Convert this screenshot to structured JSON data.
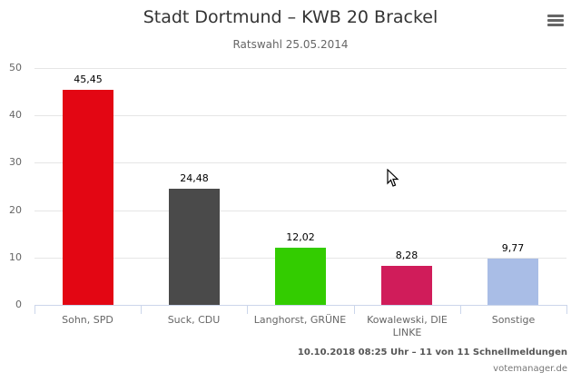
{
  "header": {
    "title": "Stadt Dortmund – KWB 20 Brackel",
    "subtitle": "Ratswahl 25.05.2014",
    "menu_icon": "hamburger-menu-icon"
  },
  "footer": {
    "status": "10.10.2018 08:25 Uhr – 11 von 11 Schnellmeldungen",
    "credit": "votemanager.de"
  },
  "chart_data": {
    "type": "bar",
    "title": "Stadt Dortmund – KWB 20 Brackel",
    "subtitle": "Ratswahl 25.05.2014",
    "categories": [
      "Sohn, SPD",
      "Suck, CDU",
      "Langhorst, GRÜNE",
      "Kowalewski, DIE LINKE",
      "Sonstige"
    ],
    "values": [
      45.45,
      24.48,
      12.02,
      8.28,
      9.77
    ],
    "value_labels": [
      "45,45",
      "24,48",
      "12,02",
      "8,28",
      "9,77"
    ],
    "colors": [
      "#e30613",
      "#4a4a4a",
      "#33cc00",
      "#d01c5a",
      "#a9bde6"
    ],
    "xlabel": "",
    "ylabel": "",
    "ylim": [
      0,
      50
    ],
    "yticks": [
      "0",
      "10",
      "20",
      "30",
      "40",
      "50"
    ],
    "grid": true,
    "legend": "none"
  }
}
